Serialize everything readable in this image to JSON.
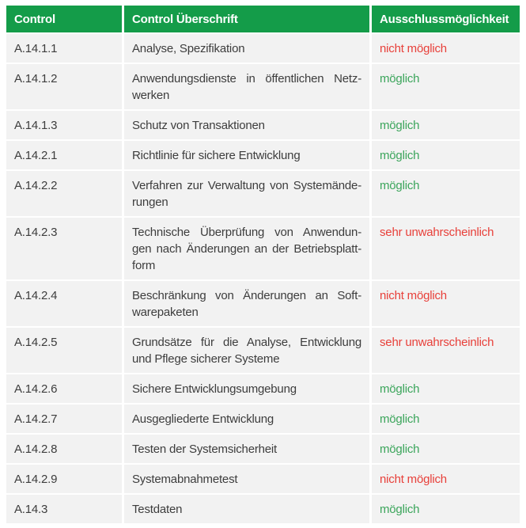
{
  "colors": {
    "header_bg": "#149c49",
    "row_bg": "#f2f2f2",
    "status_green": "#3ba55b",
    "status_red": "#e8403a",
    "text": "#3d3d3d",
    "header_text": "#ffffff"
  },
  "table": {
    "columns": [
      {
        "label": "Control"
      },
      {
        "label": "Control Überschrift"
      },
      {
        "label": "Ausschlussmöglichkeit"
      }
    ],
    "rows": [
      {
        "control": "A.14.1.1",
        "title_lines": [
          "Analyse, Spezifikation"
        ],
        "status": "nicht möglich",
        "status_color": "red"
      },
      {
        "control": "A.14.1.2",
        "title_lines": [
          "Anwendungsdienste in öffentlichen Netz-",
          "werken"
        ],
        "status": "möglich",
        "status_color": "green"
      },
      {
        "control": "A.14.1.3",
        "title_lines": [
          "Schutz von Transaktionen"
        ],
        "status": "möglich",
        "status_color": "green"
      },
      {
        "control": "A.14.2.1",
        "title_lines": [
          "Richtlinie für sichere Entwicklung"
        ],
        "status": "möglich",
        "status_color": "green"
      },
      {
        "control": "A.14.2.2",
        "title_lines": [
          "Verfahren zur Verwaltung von Systemände-",
          "rungen"
        ],
        "status": "möglich",
        "status_color": "green"
      },
      {
        "control": "A.14.2.3",
        "title_lines": [
          "Technische Überprüfung von Anwendun-",
          "gen nach Änderungen an der Betriebsplatt-",
          "form"
        ],
        "status": "sehr unwahrscheinlich",
        "status_color": "red"
      },
      {
        "control": "A.14.2.4",
        "title_lines": [
          "Beschränkung von Änderungen an Soft-",
          "warepaketen"
        ],
        "status": "nicht möglich",
        "status_color": "red"
      },
      {
        "control": "A.14.2.5",
        "title_lines": [
          "Grundsätze für die Analyse, Entwicklung",
          "und Pflege sicherer Systeme"
        ],
        "status": "sehr unwahrscheinlich",
        "status_color": "red"
      },
      {
        "control": "A.14.2.6",
        "title_lines": [
          "Sichere Entwicklungsumgebung"
        ],
        "status": "möglich",
        "status_color": "green"
      },
      {
        "control": "A.14.2.7",
        "title_lines": [
          "Ausgegliederte Entwicklung"
        ],
        "status": "möglich",
        "status_color": "green"
      },
      {
        "control": "A.14.2.8",
        "title_lines": [
          "Testen der Systemsicherheit"
        ],
        "status": "möglich",
        "status_color": "green"
      },
      {
        "control": "A.14.2.9",
        "title_lines": [
          "Systemabnahmetest"
        ],
        "status": "nicht möglich",
        "status_color": "red"
      },
      {
        "control": "A.14.3",
        "title_lines": [
          "Testdaten"
        ],
        "status": "möglich",
        "status_color": "green"
      }
    ]
  }
}
